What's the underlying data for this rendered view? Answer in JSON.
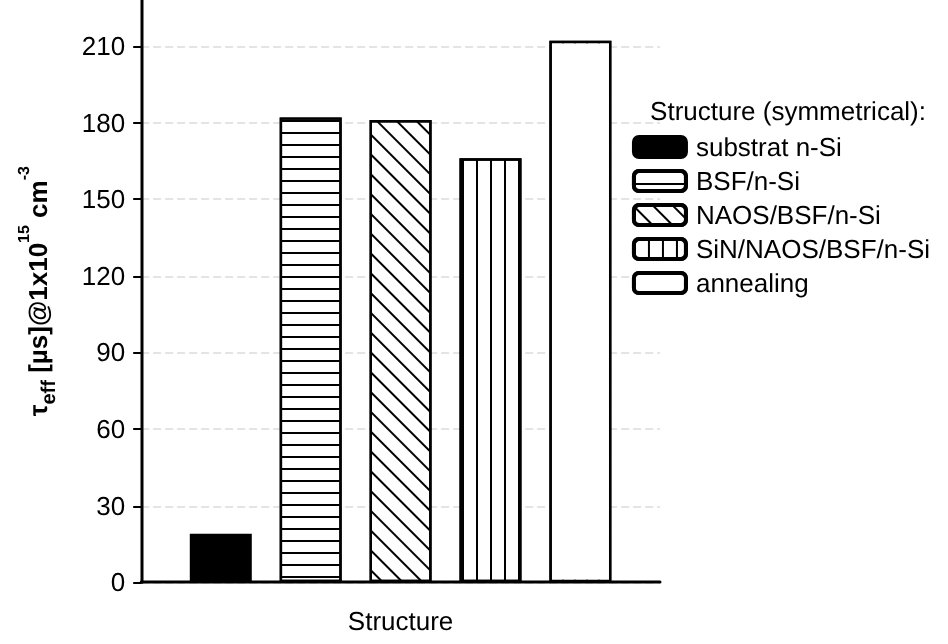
{
  "chart_data": {
    "type": "bar",
    "xlabel": "Structure",
    "ylabel": "τ$_{eff}$ [µs]@1x10$^{15}$ cm$^{-3}$",
    "legend_title": "Structure (symmetrical):",
    "categories": [
      null
    ],
    "series": [
      {
        "name": "substrat n-Si",
        "color": "#000000",
        "values": [
          19
        ]
      },
      {
        "name": "BSF/n-Si",
        "color": "#ffffff",
        "values": [
          182
        ]
      },
      {
        "name": "NAOS/BSF/n-Si",
        "color": "#ffffff",
        "values": [
          181
        ]
      },
      {
        "name": "SiN/NAOS/BSF/n-Si",
        "color": "#ffffff",
        "values": [
          166
        ]
      },
      {
        "name": "annealing",
        "color": "#ffffff",
        "values": [
          212
        ]
      }
    ],
    "ylim": [
      0,
      228
    ],
    "yticks": [
      0,
      30,
      60,
      90,
      120,
      150,
      180,
      210
    ],
    "grid": "y",
    "legend": "top right"
  }
}
